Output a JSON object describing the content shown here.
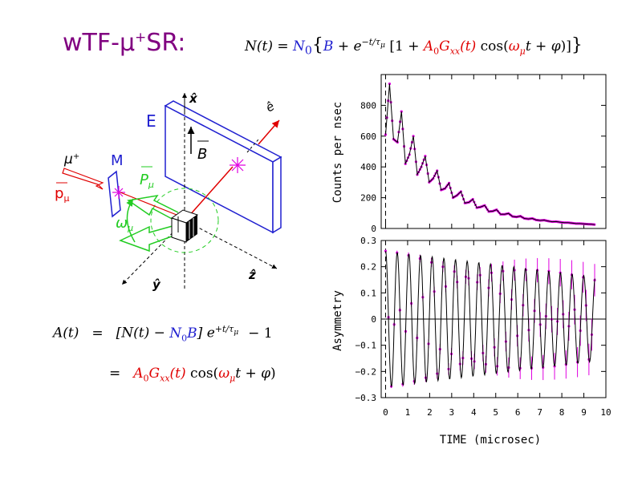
{
  "title": {
    "main": "wTF-μ",
    "sup": "+",
    "tail": "SR:"
  },
  "equation_top": {
    "lhs": "N(t) = ",
    "n0": "N",
    "n0_sub": "0",
    "brace_open": "{",
    "b": "B",
    "plus_exp": " + e",
    "exp": "−t/τ",
    "exp_sub": "μ",
    "bracket": " [1 + ",
    "a0g": "A",
    "a0g_sub": "0",
    "g": "G",
    "g_sub": "xx",
    "g_arg": "(t)",
    "cos": " cos(",
    "omega": "ω",
    "omega_sub": "μ",
    "cos_tail": "t + φ",
    "close": ")]",
    "brace_close": "}"
  },
  "equation_a1": {
    "lhs": "A(t)",
    "eq": "=",
    "open": "[N(t) − ",
    "n0b": "N",
    "n0b_sub": "0",
    "b": "B",
    "close": "] e",
    "exp": "+t/τ",
    "exp_sub": "μ",
    "tail": "− 1"
  },
  "equation_a2": {
    "eq": "=",
    "a0": "A",
    "a0_sub": "0",
    "g": "G",
    "g_sub": "xx",
    "g_arg": "(t)",
    "cos": " cos(",
    "omega": "ω",
    "omega_sub": "μ",
    "cos_tail": "t + φ",
    "close": ")"
  },
  "diagram": {
    "labels": {
      "x_axis": "x̂",
      "y_axis": "ŷ",
      "z_axis": "ẑ",
      "e_hat": "ê",
      "E": "E",
      "M": "M",
      "B_field": "B",
      "P_mu": "P",
      "P_mu_sub": "μ",
      "muon": "μ",
      "muon_sup": "+",
      "p_mu": "p",
      "p_mu_sub": "μ",
      "omega": "ω",
      "omega_sub": "μ"
    },
    "colors": {
      "detector": "#2020d0",
      "beam": "#e00000",
      "spin": "#22cc22",
      "positron": "#e000e0"
    }
  },
  "chart_data": [
    {
      "type": "line",
      "ylabel": "Counts per nsec",
      "xlabel": "",
      "xlim": [
        -0.2,
        10
      ],
      "ylim": [
        0,
        1000
      ],
      "yticks": [
        0,
        200,
        400,
        600,
        800
      ],
      "xticks": [
        0,
        1,
        2,
        3,
        4,
        5,
        6,
        7,
        8,
        9,
        10
      ],
      "xticklabels_visible": false,
      "t0_marker": 0,
      "x_range": [
        0,
        9.5
      ],
      "series": [
        {
          "color": "#000000",
          "x": [
            0.0,
            0.18,
            0.36,
            0.54,
            0.72,
            0.9,
            1.08,
            1.26,
            1.44,
            1.62,
            1.8,
            1.98,
            2.16,
            2.34,
            2.52,
            2.7,
            2.88,
            3.06,
            3.24,
            3.42,
            3.6,
            3.78,
            3.96,
            4.14,
            4.32,
            4.5,
            4.68,
            4.86,
            5.04,
            5.22,
            5.4,
            5.58,
            5.76,
            5.94,
            6.12,
            6.3,
            6.48,
            6.66,
            6.84,
            7.02,
            7.2,
            7.38,
            7.56,
            7.74,
            7.92,
            8.1,
            8.28,
            8.46,
            8.64,
            8.82,
            9.0,
            9.18,
            9.36,
            9.5
          ],
          "y": [
            610,
            940,
            580,
            560,
            760,
            420,
            480,
            600,
            350,
            400,
            470,
            300,
            325,
            375,
            250,
            260,
            295,
            200,
            215,
            240,
            165,
            170,
            190,
            135,
            140,
            150,
            110,
            112,
            122,
            92,
            92,
            98,
            78,
            75,
            80,
            65,
            62,
            65,
            55,
            52,
            54,
            48,
            44,
            45,
            41,
            38,
            38,
            35,
            32,
            32,
            30,
            28,
            27,
            25
          ]
        }
      ]
    },
    {
      "type": "line",
      "ylabel": "Asymmetry",
      "xlabel": "TIME (microsec)",
      "xlim": [
        -0.2,
        10
      ],
      "ylim": [
        -0.3,
        0.3
      ],
      "yticks": [
        -0.3,
        -0.2,
        -0.1,
        0,
        0.1,
        0.2,
        0.3
      ],
      "yticklabels": [
        "−0.3",
        "−0.2",
        "−0.1",
        "0",
        "0.1",
        "0.2",
        "0.3"
      ],
      "xticks": [
        0,
        1,
        2,
        3,
        4,
        5,
        6,
        7,
        8,
        9,
        10
      ],
      "xticklabels": [
        "0",
        "1",
        "2",
        "3",
        "4",
        "5",
        "6",
        "7",
        "8",
        "9",
        "10"
      ],
      "t0_marker": 0,
      "zero_line": true,
      "oscillation": {
        "amplitude": 0.26,
        "frequency_mhz": 1.89,
        "x_range": [
          0,
          9.5
        ]
      },
      "series": [
        {
          "name": "",
          "color": "#000000",
          "style": "fit"
        },
        {
          "name": "",
          "color": "#e000e0",
          "style": "data_points_with_errorbars"
        }
      ]
    }
  ]
}
